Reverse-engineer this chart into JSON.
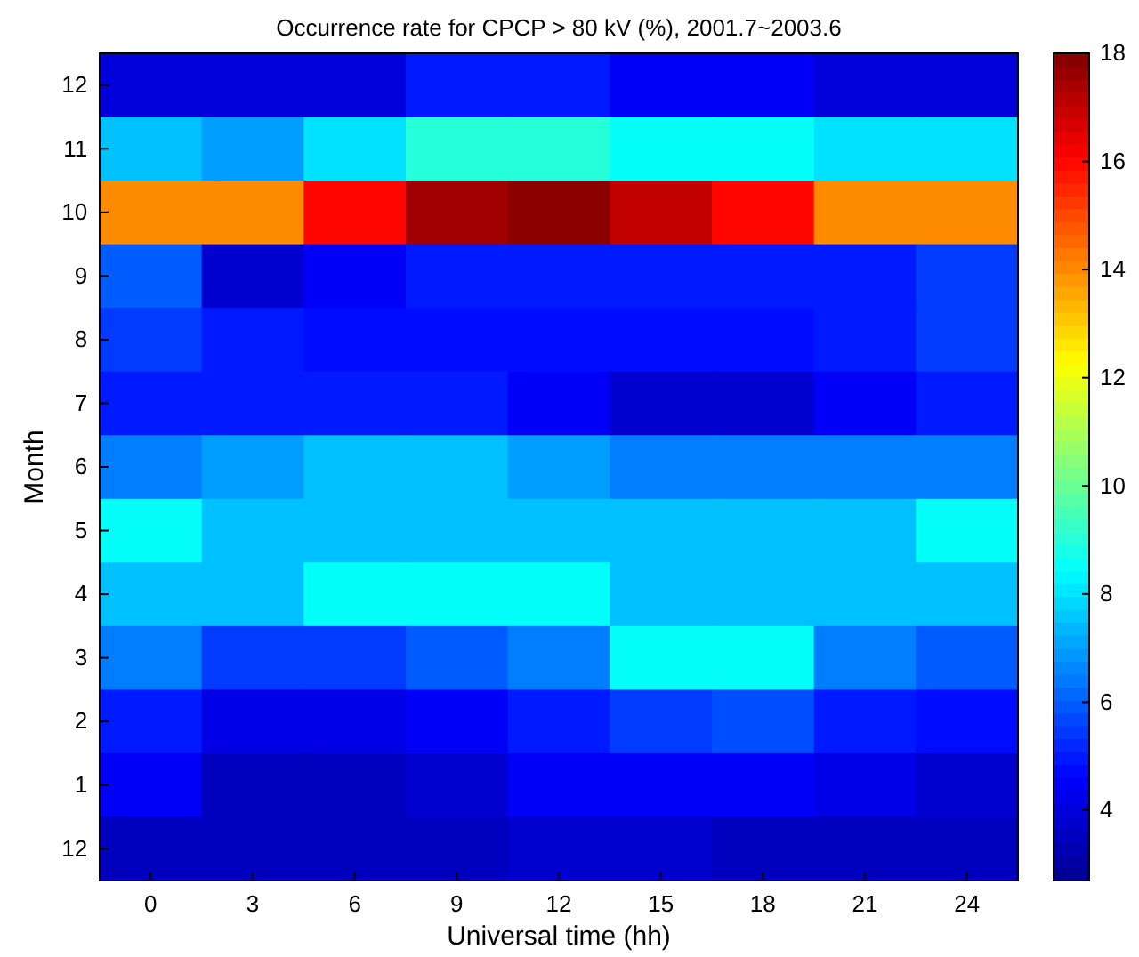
{
  "chart_data": {
    "type": "heatmap",
    "title": "Occurrence rate for CPCP > 80 kV (%), 2001.7~2003.6",
    "xlabel": "Universal time (hh)",
    "ylabel": "Month",
    "categories": [
      "0",
      "3",
      "6",
      "9",
      "12",
      "15",
      "18",
      "21",
      "24"
    ],
    "y_categories": [
      "12",
      "11",
      "10",
      "9",
      "8",
      "7",
      "6",
      "5",
      "4",
      "3",
      "2",
      "1",
      "12"
    ],
    "cells": [
      [
        4,
        4,
        4,
        5,
        5,
        4.5,
        4.5,
        4,
        4
      ],
      [
        7.5,
        7,
        8,
        9,
        9,
        8.5,
        8.5,
        8,
        8
      ],
      [
        14,
        14,
        16,
        17.5,
        17.8,
        17,
        16,
        14,
        14
      ],
      [
        6,
        3.8,
        4.5,
        5,
        5,
        5,
        5,
        5,
        5.5
      ],
      [
        5.5,
        5,
        4.8,
        4.8,
        4.8,
        4.8,
        4.8,
        5,
        5.5
      ],
      [
        5,
        5,
        5,
        5,
        4.5,
        3.8,
        3.8,
        4.5,
        5
      ],
      [
        6.5,
        7,
        7.5,
        7.5,
        7,
        6.5,
        6.5,
        6.5,
        6.5
      ],
      [
        8.5,
        7.5,
        7.5,
        7.5,
        7.5,
        7.5,
        7.5,
        7.5,
        8.5
      ],
      [
        7.5,
        7.5,
        8.5,
        8.5,
        8.5,
        7.5,
        7.5,
        7.5,
        7.5
      ],
      [
        6.5,
        5.5,
        5.5,
        6,
        6.5,
        8.5,
        8.5,
        6.5,
        6
      ],
      [
        5,
        4.2,
        4.2,
        4.5,
        5,
        5.5,
        5.8,
        5,
        4.8
      ],
      [
        4.5,
        3.5,
        3.5,
        3.8,
        4.5,
        4.5,
        4.5,
        4.2,
        3.8
      ],
      [
        3.5,
        3.5,
        3.5,
        3.5,
        3.8,
        3.8,
        3.5,
        3.5,
        3.5
      ]
    ],
    "clim": [
      2.7,
      18
    ],
    "cticks": [
      4,
      6,
      8,
      10,
      12,
      14,
      16,
      18
    ]
  }
}
